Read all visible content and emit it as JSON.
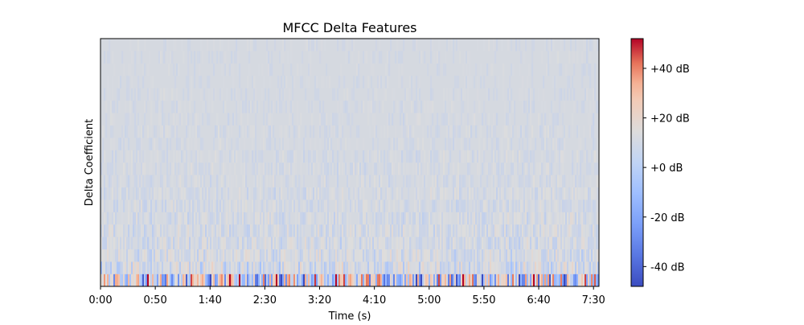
{
  "chart_data": {
    "type": "heatmap",
    "title": "MFCC Delta Features",
    "xlabel": "Time (s)",
    "ylabel": "Delta Coefficient",
    "x_range_seconds": [
      0,
      455
    ],
    "x_ticks": [
      {
        "value": 0,
        "label": "0:00"
      },
      {
        "value": 50,
        "label": "0:50"
      },
      {
        "value": 100,
        "label": "1:40"
      },
      {
        "value": 150,
        "label": "2:30"
      },
      {
        "value": 200,
        "label": "3:20"
      },
      {
        "value": 250,
        "label": "4:10"
      },
      {
        "value": 300,
        "label": "5:00"
      },
      {
        "value": 350,
        "label": "5:50"
      },
      {
        "value": 400,
        "label": "6:40"
      },
      {
        "value": 450,
        "label": "7:30"
      }
    ],
    "colorbar": {
      "colormap": "coolwarm",
      "range": [
        -48,
        52
      ],
      "ticks": [
        {
          "value": 40,
          "label": "+40 dB"
        },
        {
          "value": 20,
          "label": "+20 dB"
        },
        {
          "value": 0,
          "label": "+0 dB"
        },
        {
          "value": -20,
          "label": "-20 dB"
        },
        {
          "value": -40,
          "label": "-40 dB"
        }
      ]
    },
    "coefficient_count": 20,
    "value_profile": [
      {
        "coefficient": 0,
        "typical_abs_dB": 30
      },
      {
        "coefficient": 1,
        "typical_abs_dB": 6
      },
      {
        "coefficient": 2,
        "typical_abs_dB": 4
      },
      {
        "coefficient": 3,
        "typical_abs_dB": 3
      },
      {
        "coefficient": 4,
        "typical_abs_dB": 3
      },
      {
        "coefficient": 5,
        "typical_abs_dB": 2.5
      },
      {
        "coefficient": 6,
        "typical_abs_dB": 2
      },
      {
        "coefficient": 7,
        "typical_abs_dB": 2
      },
      {
        "coefficient": 8,
        "typical_abs_dB": 1.5
      },
      {
        "coefficient": 9,
        "typical_abs_dB": 1.5
      },
      {
        "coefficient": 10,
        "typical_abs_dB": 1.5
      },
      {
        "coefficient": 11,
        "typical_abs_dB": 1.2
      },
      {
        "coefficient": 12,
        "typical_abs_dB": 1.2
      },
      {
        "coefficient": 13,
        "typical_abs_dB": 1
      },
      {
        "coefficient": 14,
        "typical_abs_dB": 1
      },
      {
        "coefficient": 15,
        "typical_abs_dB": 1
      },
      {
        "coefficient": 16,
        "typical_abs_dB": 0.8
      },
      {
        "coefficient": 17,
        "typical_abs_dB": 0.8
      },
      {
        "coefficient": 18,
        "typical_abs_dB": 0.8
      },
      {
        "coefficient": 19,
        "typical_abs_dB": 0.8
      }
    ],
    "grid": false,
    "legend": "none"
  }
}
